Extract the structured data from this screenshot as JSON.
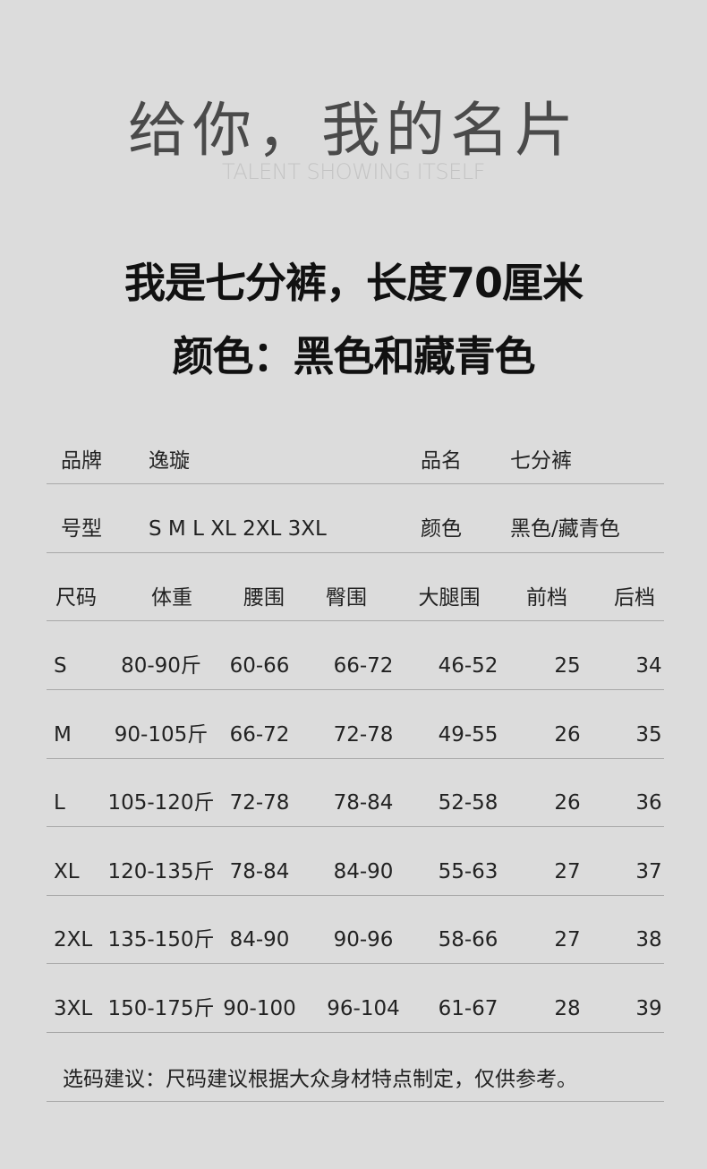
{
  "header": {
    "title": "给你，我的名片",
    "subtitle": "TALENT SHOWING ITSELF"
  },
  "headline": {
    "line1": "我是七分裤，长度70厘米",
    "line2": "颜色：黑色和藏青色"
  },
  "info": {
    "brand_label": "品牌",
    "brand_value": "逸璇",
    "name_label": "品名",
    "name_value": "七分裤",
    "sizes_label": "号型",
    "sizes_value": "S M L XL 2XL 3XL",
    "color_label": "颜色",
    "color_value": "黑色/藏青色"
  },
  "table": {
    "headers": [
      "尺码",
      "体重",
      "腰围",
      "臀围",
      "大腿围",
      "前档",
      "后档"
    ],
    "rows": [
      [
        "S",
        "80-90斤",
        "60-66",
        "66-72",
        "46-52",
        "25",
        "34"
      ],
      [
        "M",
        "90-105斤",
        "66-72",
        "72-78",
        "49-55",
        "26",
        "35"
      ],
      [
        "L",
        "105-120斤",
        "72-78",
        "78-84",
        "52-58",
        "26",
        "36"
      ],
      [
        "XL",
        "120-135斤",
        "78-84",
        "84-90",
        "55-63",
        "27",
        "37"
      ],
      [
        "2XL",
        "135-150斤",
        "84-90",
        "90-96",
        "58-66",
        "27",
        "38"
      ],
      [
        "3XL",
        "150-175斤",
        "90-100",
        "96-104",
        "61-67",
        "28",
        "39"
      ]
    ]
  },
  "note": "选码建议：尺码建议根据大众身材特点制定，仅供参考。"
}
